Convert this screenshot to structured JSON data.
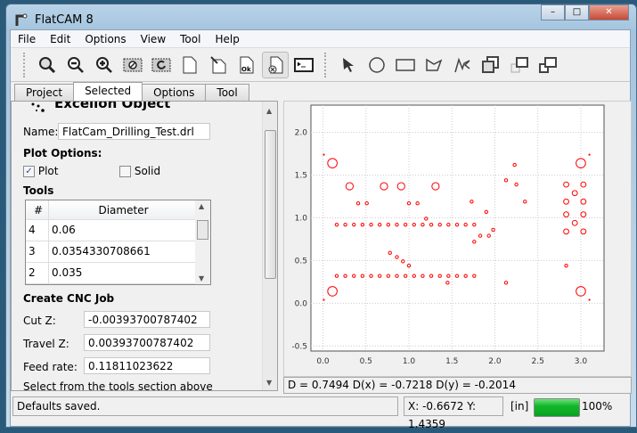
{
  "window": {
    "title": "FlatCAM 8",
    "controls": [
      "minimize",
      "maximize",
      "close"
    ]
  },
  "menu": [
    "File",
    "Edit",
    "Options",
    "View",
    "Tool",
    "Help"
  ],
  "toolbar": {
    "left": [
      "zoom-fit-icon",
      "zoom-out-icon",
      "zoom-in-icon",
      "clear-plot-icon",
      "replot-icon",
      "new-project-icon",
      "edit-file-icon",
      "ok-file-icon",
      "delete-file-icon",
      "shell-icon"
    ],
    "right": [
      "pointer-icon",
      "circle-icon",
      "rectangle-icon",
      "polygon-icon",
      "path-icon",
      "union-icon",
      "intersection-icon",
      "subtract-icon"
    ]
  },
  "tabs": [
    "Project",
    "Selected",
    "Options",
    "Tool"
  ],
  "selected_tab": "Selected",
  "panel": {
    "header": "Excellon Object",
    "name_label": "Name:",
    "name_value": "FlatCam_Drilling_Test.drl",
    "plot_options": "Plot Options:",
    "plot_label": "Plot",
    "plot_checked": true,
    "solid_label": "Solid",
    "solid_checked": false,
    "tools_label": "Tools",
    "tools_headers": [
      "#",
      "Diameter"
    ],
    "tools_rows": [
      [
        "4",
        "0.06"
      ],
      [
        "3",
        "0.0354330708661"
      ],
      [
        "2",
        "0.035"
      ]
    ],
    "cnc_label": "Create CNC Job",
    "cutz_label": "Cut Z:",
    "cutz_value": "-0.00393700787402",
    "travelz_label": "Travel Z:",
    "travelz_value": "0.00393700787402",
    "feed_label": "Feed rate:",
    "feed_value": "0.11811023622",
    "hint": "Select from the tools section above"
  },
  "plot": {
    "xlim": [
      -0.14,
      3.27
    ],
    "ylim": [
      -0.56,
      2.32
    ],
    "xticks": [
      "0.0",
      "0.5",
      "1.0",
      "1.5",
      "2.0",
      "2.5",
      "3.0"
    ],
    "yticks": [
      "-0.5",
      "0.0",
      "0.5",
      "1.0",
      "1.5",
      "2.0"
    ],
    "grid": true,
    "color": "#ff0000",
    "holes": [
      {
        "diameter": 0.11,
        "points": [
          [
            0.11,
            1.64
          ],
          [
            0.11,
            0.14
          ],
          [
            3.0,
            1.64
          ],
          [
            3.0,
            0.14
          ]
        ]
      },
      {
        "diameter": 0.085,
        "points": [
          [
            0.31,
            1.37
          ],
          [
            0.71,
            1.37
          ],
          [
            0.91,
            1.37
          ],
          [
            1.31,
            1.37
          ]
        ]
      },
      {
        "diameter": 0.06,
        "points": [
          [
            2.83,
            1.39
          ],
          [
            3.03,
            1.39
          ],
          [
            2.93,
            1.29
          ],
          [
            2.83,
            1.19
          ],
          [
            3.03,
            1.19
          ],
          [
            2.83,
            1.04
          ],
          [
            3.03,
            1.04
          ],
          [
            2.93,
            0.94
          ],
          [
            2.83,
            0.84
          ],
          [
            3.03,
            0.84
          ]
        ]
      },
      {
        "diameter": 0.035,
        "points": [
          [
            0.41,
            1.17
          ],
          [
            0.51,
            1.17
          ],
          [
            1.0,
            1.17
          ],
          [
            1.1,
            1.17
          ],
          [
            1.2,
            0.99
          ],
          [
            1.73,
            1.19
          ],
          [
            1.9,
            1.07
          ],
          [
            1.98,
            0.86
          ],
          [
            1.83,
            0.79
          ],
          [
            1.93,
            0.79
          ],
          [
            1.76,
            0.72
          ],
          [
            2.13,
            1.44
          ],
          [
            2.23,
            1.62
          ],
          [
            2.25,
            1.39
          ],
          [
            2.35,
            1.19
          ],
          [
            0.78,
            0.59
          ],
          [
            0.86,
            0.54
          ],
          [
            0.93,
            0.49
          ],
          [
            1.0,
            0.44
          ],
          [
            1.45,
            0.24
          ],
          [
            2.13,
            0.24
          ],
          [
            2.83,
            0.44
          ],
          [
            0.16,
            0.92
          ],
          [
            0.26,
            0.92
          ],
          [
            0.36,
            0.92
          ],
          [
            0.46,
            0.92
          ],
          [
            0.56,
            0.92
          ],
          [
            0.66,
            0.92
          ],
          [
            0.76,
            0.92
          ],
          [
            0.86,
            0.92
          ],
          [
            0.96,
            0.92
          ],
          [
            1.06,
            0.92
          ],
          [
            1.16,
            0.92
          ],
          [
            1.26,
            0.92
          ],
          [
            1.36,
            0.92
          ],
          [
            1.46,
            0.92
          ],
          [
            1.56,
            0.92
          ],
          [
            1.66,
            0.92
          ],
          [
            1.76,
            0.92
          ],
          [
            0.16,
            0.32
          ],
          [
            0.26,
            0.32
          ],
          [
            0.36,
            0.32
          ],
          [
            0.46,
            0.32
          ],
          [
            0.56,
            0.32
          ],
          [
            0.66,
            0.32
          ],
          [
            0.76,
            0.32
          ],
          [
            0.86,
            0.32
          ],
          [
            0.96,
            0.32
          ],
          [
            1.06,
            0.32
          ],
          [
            1.16,
            0.32
          ],
          [
            1.26,
            0.32
          ],
          [
            1.36,
            0.32
          ],
          [
            1.46,
            0.32
          ],
          [
            1.56,
            0.32
          ],
          [
            1.66,
            0.32
          ],
          [
            1.76,
            0.32
          ]
        ]
      },
      {
        "diameter": 0.01,
        "points": [
          [
            0.01,
            1.74
          ],
          [
            3.1,
            1.74
          ],
          [
            0.01,
            0.04
          ],
          [
            3.1,
            0.04
          ]
        ]
      }
    ]
  },
  "measurement": "D = 0.7494  D(x) = -0.7218  D(y) = -0.2014",
  "status": {
    "message": "Defaults saved.",
    "coords": "X: -0.6672   Y: 1.4359",
    "units": "[in]",
    "progress_percent": 100,
    "progress_label": "100%"
  }
}
